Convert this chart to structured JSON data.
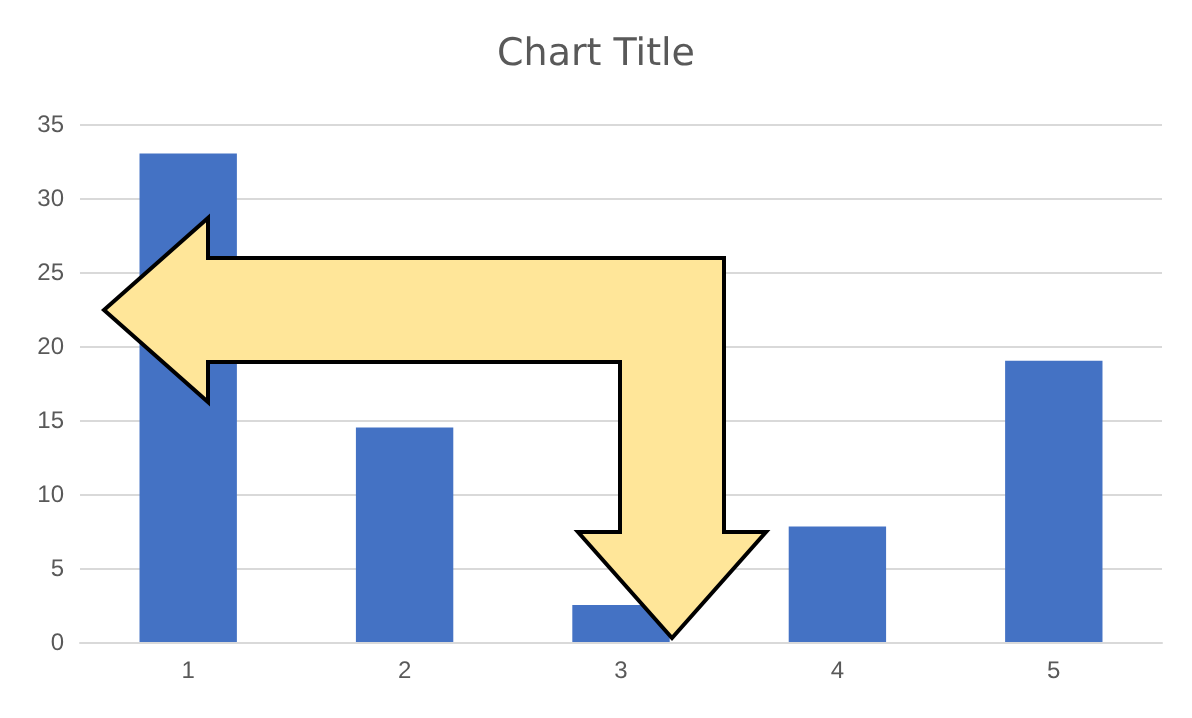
{
  "chart_data": {
    "type": "bar",
    "title": "Chart Title",
    "categories": [
      "1",
      "2",
      "3",
      "4",
      "5"
    ],
    "values": [
      33,
      14.5,
      2.5,
      7.8,
      19
    ],
    "color": "#4472c4",
    "ylim": [
      0,
      35
    ],
    "yticks": [
      0,
      5,
      10,
      15,
      20,
      25,
      30,
      35
    ],
    "grid": "y"
  }
}
